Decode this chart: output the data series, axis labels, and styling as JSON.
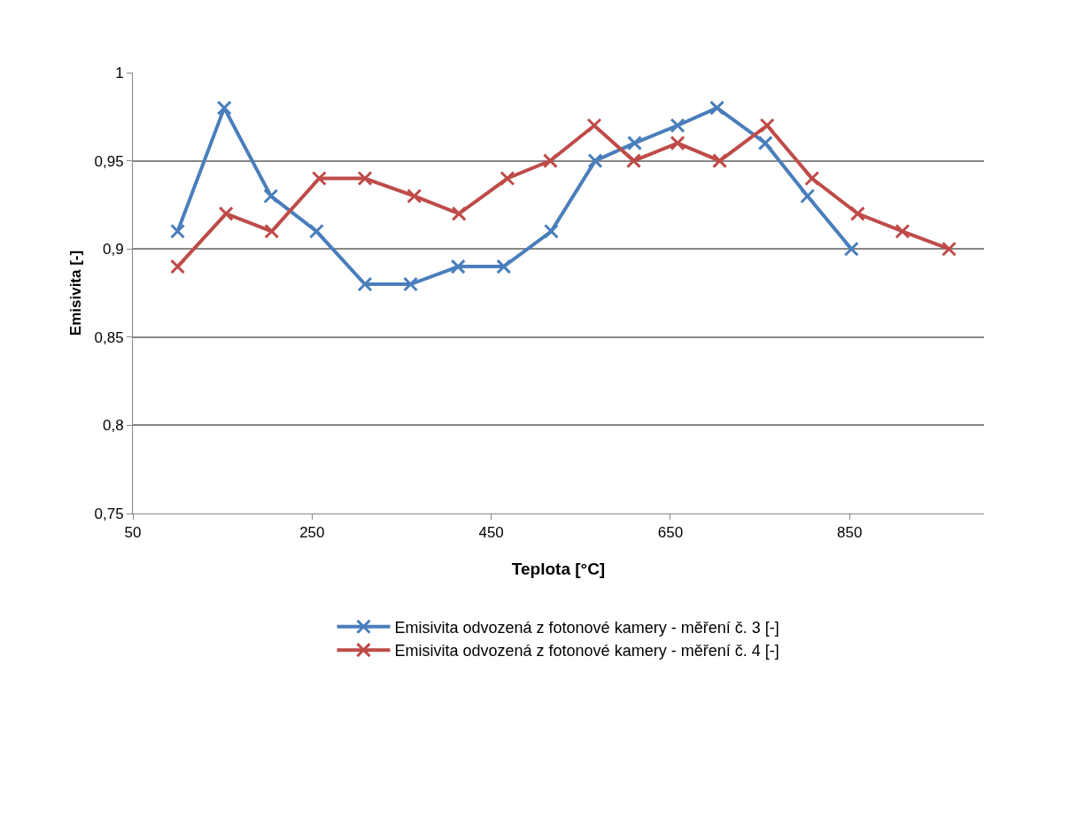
{
  "chart_data": {
    "type": "line",
    "xlabel": "Teplota [°C]",
    "ylabel": "Emisivita [-]",
    "xlim": [
      50,
      1000
    ],
    "xticks": [
      50,
      250,
      450,
      650,
      850
    ],
    "ylim": [
      0.75,
      1
    ],
    "yticks": [
      {
        "value": 0.75,
        "label": "0,75"
      },
      {
        "value": 0.8,
        "label": "0,8"
      },
      {
        "value": 0.85,
        "label": "0,85"
      },
      {
        "value": 0.9,
        "label": "0,9"
      },
      {
        "value": 0.95,
        "label": "0,95"
      },
      {
        "value": 1,
        "label": "1"
      }
    ],
    "grid": "y",
    "legend": "bottom",
    "marker": "cross",
    "line_style": "solid",
    "series": [
      {
        "name": "Emisivita odvozená z fotonové kamery - měření č. 3 [-]",
        "color": "#4a7ebb",
        "x": [
          100,
          152,
          204,
          255,
          309,
          360,
          413,
          464,
          517,
          566,
          610,
          658,
          702,
          756,
          803,
          852
        ],
        "values": [
          0.91,
          0.98,
          0.93,
          0.91,
          0.88,
          0.88,
          0.89,
          0.89,
          0.91,
          0.95,
          0.96,
          0.97,
          0.98,
          0.96,
          0.93,
          0.9
        ]
      },
      {
        "name": "Emisivita odvozená z fotonové kamery - měření č. 4 [-]",
        "color": "#be4b48",
        "x": [
          100,
          154,
          205,
          258,
          309,
          364,
          414,
          468,
          516,
          565,
          609,
          658,
          705,
          758,
          808,
          859,
          909,
          961
        ],
        "values": [
          0.89,
          0.92,
          0.91,
          0.94,
          0.94,
          0.93,
          0.92,
          0.94,
          0.95,
          0.97,
          0.95,
          0.96,
          0.95,
          0.97,
          0.94,
          0.92,
          0.91,
          0.9
        ]
      }
    ]
  }
}
